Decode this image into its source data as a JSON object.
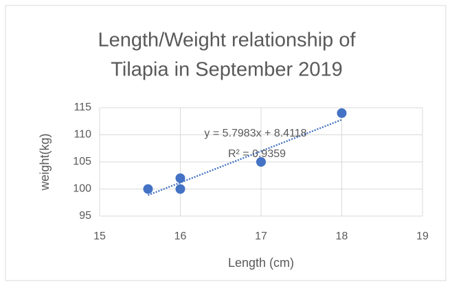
{
  "chart_data": {
    "type": "scatter",
    "title": [
      "Length/Weight relationship of",
      "Tilapia in  September 2019"
    ],
    "x_label": "Length (cm)",
    "y_label": "weight(kg)",
    "series": [
      {
        "name": "weight",
        "color": "#4472c4",
        "x": [
          15.6,
          16,
          16,
          17,
          18
        ],
        "values": [
          100,
          102,
          100,
          105,
          114
        ]
      }
    ],
    "trendline": {
      "label": "y = 5.7983x + 8.4118",
      "r2_label": "R² = 0.9359",
      "slope": 5.7983,
      "intercept": 8.4118
    },
    "xlim": [
      15,
      19
    ],
    "xticks": [
      15,
      16,
      17,
      18,
      19
    ],
    "ylim": [
      95,
      115
    ],
    "yticks": [
      95,
      100,
      105,
      110,
      115
    ],
    "grid": true
  }
}
